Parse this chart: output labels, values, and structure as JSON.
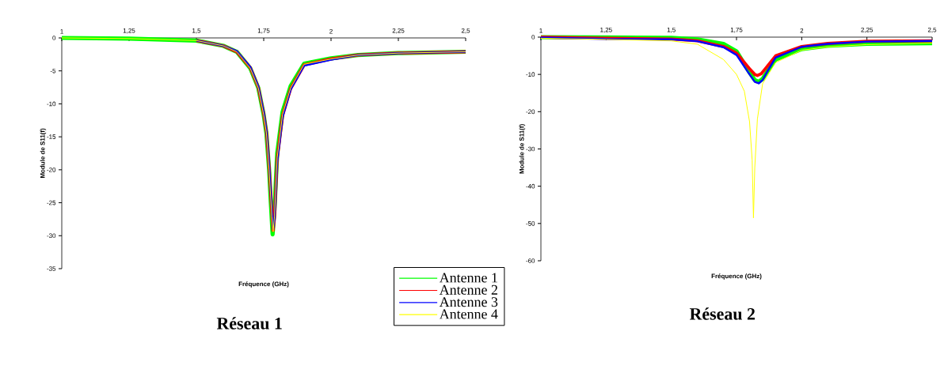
{
  "chart_data": [
    {
      "type": "line",
      "title": "Réseau 1",
      "xlabel": "Fréquence (GHz)",
      "ylabel": "Module de S11(f)",
      "xlim": [
        1,
        2.5
      ],
      "ylim": [
        -35,
        0
      ],
      "xticks": [
        1,
        {
          "value": 1.25,
          "label": "1,25"
        },
        {
          "value": 1.5,
          "label": "1,5"
        },
        {
          "value": 1.75,
          "label": "1,75"
        },
        2,
        {
          "value": 2.25,
          "label": "2,25"
        },
        {
          "value": 2.5,
          "label": "2,5"
        }
      ],
      "yticks": [
        -35,
        -30,
        -25,
        -20,
        -15,
        -10,
        -5,
        0
      ],
      "grid": false,
      "legend": "bottom right",
      "marker": "none",
      "line_style": "solid",
      "x": [
        1,
        1.25,
        1.5,
        1.6,
        1.65,
        1.7,
        1.73,
        1.75,
        1.76,
        1.77,
        1.78,
        1.785,
        1.79,
        1.8,
        1.82,
        1.85,
        1.9,
        2.0,
        2.1,
        2.25,
        2.5
      ],
      "series": [
        {
          "name": "Antenne 1",
          "color": "#00ff00",
          "x": [
            1,
            1.25,
            1.5,
            1.6,
            1.65,
            1.7,
            1.73,
            1.75,
            1.76,
            1.77,
            1.775,
            1.783,
            1.79,
            1.8,
            1.82,
            1.85,
            1.9,
            2.0,
            2.1,
            2.25,
            2.5
          ],
          "values": [
            0,
            -0.1,
            -0.4,
            -1.2,
            -2.1,
            -4.6,
            -7.6,
            -11.7,
            -14.5,
            -20,
            -24,
            -29.8,
            -26,
            -17.5,
            -11.2,
            -7.3,
            -3.9,
            -3.1,
            -2.6,
            -2.3,
            -2.1
          ]
        },
        {
          "name": "Antenne 2",
          "color": "#ff0000",
          "values": [
            null,
            null,
            -0.4,
            -1.2,
            -2.1,
            -4.5,
            -7.5,
            -11.5,
            -14.2,
            -19.5,
            -26.5,
            -29.2,
            -27.2,
            -18.4,
            -11.8,
            -7.7,
            -4.1,
            -3.2,
            -2.6,
            -2.3,
            -2.1
          ]
        },
        {
          "name": "Antenne 3",
          "color": "#0000ff",
          "values": [
            null,
            null,
            -0.4,
            -1.2,
            -2.0,
            -4.4,
            -7.4,
            -11.3,
            -14.0,
            -19.2,
            -26.2,
            -29.0,
            -27.5,
            -18.8,
            -12.0,
            -7.8,
            -4.2,
            -3.3,
            -2.6,
            -2.3,
            -2.1
          ]
        },
        {
          "name": "Antenne 4",
          "color": "#ffff00",
          "values": [
            0,
            -0.1,
            -0.4,
            -1.2,
            -2.1,
            -4.6,
            -7.6,
            -11.7,
            -14.4,
            -20,
            -27,
            -29.4,
            -27,
            -18.2,
            -11.6,
            -7.6,
            -4.0,
            -3.2,
            -2.6,
            -2.3,
            -2.1
          ]
        }
      ]
    },
    {
      "type": "line",
      "title": "Réseau 2",
      "xlabel": "Fréquence (GHz)",
      "ylabel": "Module de S11(f)",
      "xlim": [
        1,
        2.5
      ],
      "ylim": [
        -60,
        0
      ],
      "xticks": [
        1,
        {
          "value": 1.25,
          "label": "1,25"
        },
        {
          "value": 1.5,
          "label": "1,5"
        },
        {
          "value": 1.75,
          "label": "1,75"
        },
        2,
        {
          "value": 2.25,
          "label": "2,25"
        },
        {
          "value": 2.5,
          "label": "2,5"
        }
      ],
      "yticks": [
        -60,
        -50,
        -40,
        -30,
        -20,
        -10,
        0
      ],
      "grid": false,
      "legend": false,
      "marker": "none",
      "line_style": "solid",
      "series": [
        {
          "color": "#00ff00",
          "x": [
            1,
            1.25,
            1.5,
            1.6,
            1.7,
            1.75,
            1.8,
            1.82,
            1.835,
            1.85,
            1.87,
            1.9,
            2.0,
            2.1,
            2.25,
            2.5
          ],
          "values": [
            0,
            -0.1,
            -0.2,
            -0.6,
            -1.8,
            -3.8,
            -9.5,
            -11.5,
            -12,
            -11.2,
            -9,
            -6,
            -3.2,
            -2.3,
            -1.8,
            -1.6
          ]
        },
        {
          "color": "#ff0000",
          "x": [
            1,
            1.25,
            1.5,
            1.6,
            1.7,
            1.75,
            1.8,
            1.82,
            1.83,
            1.845,
            1.86,
            1.9,
            2.0,
            2.1,
            2.25,
            2.5
          ],
          "values": [
            0,
            -0.3,
            -0.5,
            -1.0,
            -2.5,
            -4.3,
            -8.5,
            -10,
            -10.3,
            -9.8,
            -8.5,
            -5,
            -2.5,
            -1.7,
            -1.1,
            -1.0
          ]
        },
        {
          "color": "#0000ff",
          "x": [
            1,
            1.25,
            1.5,
            1.6,
            1.7,
            1.75,
            1.8,
            1.82,
            1.835,
            1.85,
            1.87,
            1.9,
            2.0,
            2.1,
            2.25,
            2.5
          ],
          "values": [
            -0.1,
            -0.5,
            -0.6,
            -1.1,
            -2.7,
            -4.8,
            -10,
            -12,
            -12.4,
            -11.5,
            -9,
            -5.5,
            -2.6,
            -1.8,
            -1.2,
            -1.0
          ]
        },
        {
          "color": "#ffff00",
          "x": [
            1,
            1.25,
            1.5,
            1.6,
            1.7,
            1.75,
            1.78,
            1.8,
            1.81,
            1.815,
            1.82,
            1.83,
            1.85,
            1.9,
            2.0,
            2.1,
            2.25,
            2.5
          ],
          "values": [
            -0.3,
            -0.6,
            -1.0,
            -1.9,
            -6,
            -10,
            -14.5,
            -22.7,
            -33,
            -48.5,
            -35,
            -22,
            -12.5,
            -6.8,
            -3.5,
            -2.6,
            -2.0,
            -1.6
          ]
        }
      ]
    }
  ]
}
